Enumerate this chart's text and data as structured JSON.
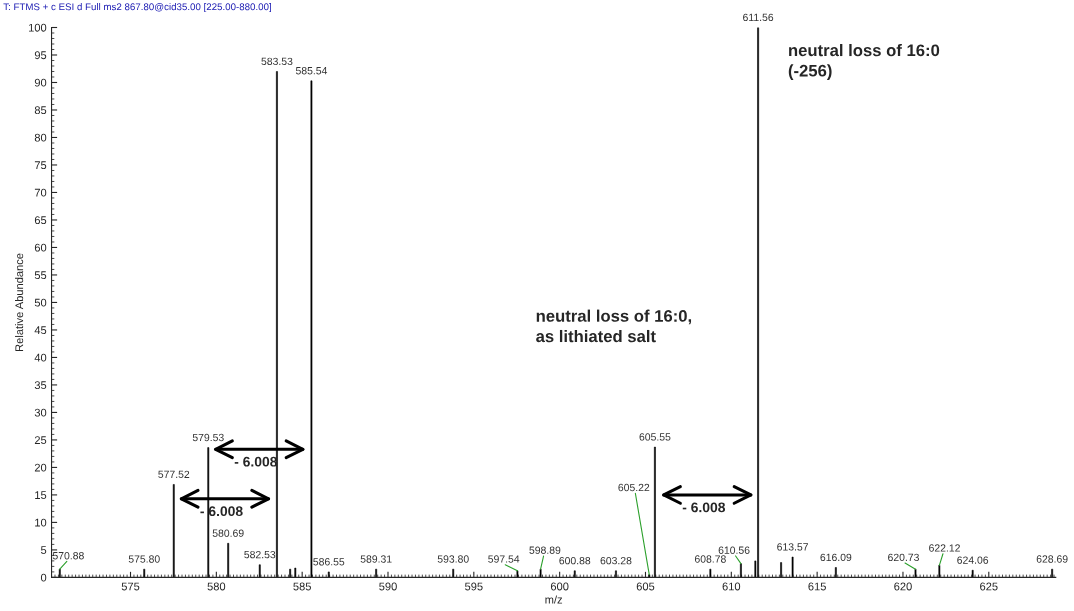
{
  "chart_data": {
    "type": "bar",
    "xlabel": "m/z",
    "ylabel": "Relative Abundance",
    "x": [
      570.88,
      575.8,
      577.52,
      579.53,
      580.69,
      582.53,
      583.53,
      584.3,
      584.6,
      585.54,
      586.55,
      589.31,
      593.8,
      597.54,
      598.89,
      600.88,
      603.28,
      605.22,
      605.55,
      608.78,
      610.56,
      611.4,
      611.56,
      612.9,
      613.57,
      616.09,
      620.73,
      622.12,
      624.06,
      628.69
    ],
    "values": [
      1.5,
      1.5,
      16.9,
      23.6,
      6.2,
      2.3,
      92,
      1.5,
      1.7,
      90.3,
      1,
      1.5,
      1.5,
      1.2,
      1.5,
      1.2,
      1.2,
      0.5,
      23.7,
      1.5,
      2.5,
      3,
      100,
      2.7,
      3.7,
      1.8,
      1.5,
      2.2,
      1.3,
      1.5
    ],
    "color": "#000000",
    "xlim": [
      570.4,
      628.9
    ],
    "xticks": [
      575,
      580,
      585,
      590,
      595,
      600,
      605,
      610,
      615,
      620,
      625
    ],
    "ylim": [
      0,
      100
    ],
    "yticks": [
      0,
      5,
      10,
      15,
      20,
      25,
      30,
      35,
      40,
      45,
      50,
      55,
      60,
      65,
      70,
      75,
      80,
      85,
      90,
      95,
      100
    ],
    "grid": false,
    "annotations": [
      "T: FTMS + c ESI d Full ms2 867.80@cid35.00 [225.00-880.00]",
      "- 6.008",
      "- 6.008",
      "- 6.008",
      "neutral loss of 16:0\n(-256)",
      "neutral loss of 16:0,\nas lithiated salt",
      {
        "text": "570.88",
        "x": 570.88,
        "y": 1.5
      },
      {
        "text": "575.80",
        "x": 575.8,
        "y": 1.5
      },
      {
        "text": "577.52",
        "x": 577.52,
        "y": 16.9
      },
      {
        "text": "579.53",
        "x": 579.53,
        "y": 23.6
      },
      {
        "text": "580.69",
        "x": 580.69,
        "y": 6.2
      },
      {
        "text": "582.53",
        "x": 582.53,
        "y": 2.3
      },
      {
        "text": "583.53",
        "x": 583.53,
        "y": 92
      },
      {
        "text": "585.54",
        "x": 585.54,
        "y": 90.3
      },
      {
        "text": "586.55",
        "x": 586.55,
        "y": 1
      },
      {
        "text": "589.31",
        "x": 589.31,
        "y": 1.5
      },
      {
        "text": "593.80",
        "x": 593.8,
        "y": 1.5
      },
      {
        "text": "597.54",
        "x": 597.54,
        "y": 1.2
      },
      {
        "text": "598.89",
        "x": 598.89,
        "y": 1.5
      },
      {
        "text": "600.88",
        "x": 600.88,
        "y": 1.2
      },
      {
        "text": "603.28",
        "x": 603.28,
        "y": 1.2
      },
      {
        "text": "605.22",
        "x": 605.22,
        "y": 0.5
      },
      {
        "text": "605.55",
        "x": 605.55,
        "y": 23.7
      },
      {
        "text": "608.78",
        "x": 608.78,
        "y": 1.5
      },
      {
        "text": "610.56",
        "x": 610.56,
        "y": 2.5
      },
      {
        "text": "611.56",
        "x": 611.56,
        "y": 100
      },
      {
        "text": "613.57",
        "x": 613.57,
        "y": 3.7
      },
      {
        "text": "616.09",
        "x": 616.09,
        "y": 1.8
      },
      {
        "text": "620.73",
        "x": 620.73,
        "y": 1.5
      },
      {
        "text": "622.12",
        "x": 622.12,
        "y": 2.2
      },
      {
        "text": "624.06",
        "x": 624.06,
        "y": 1.3
      },
      {
        "text": "628.69",
        "x": 628.69,
        "y": 1.5
      }
    ]
  }
}
